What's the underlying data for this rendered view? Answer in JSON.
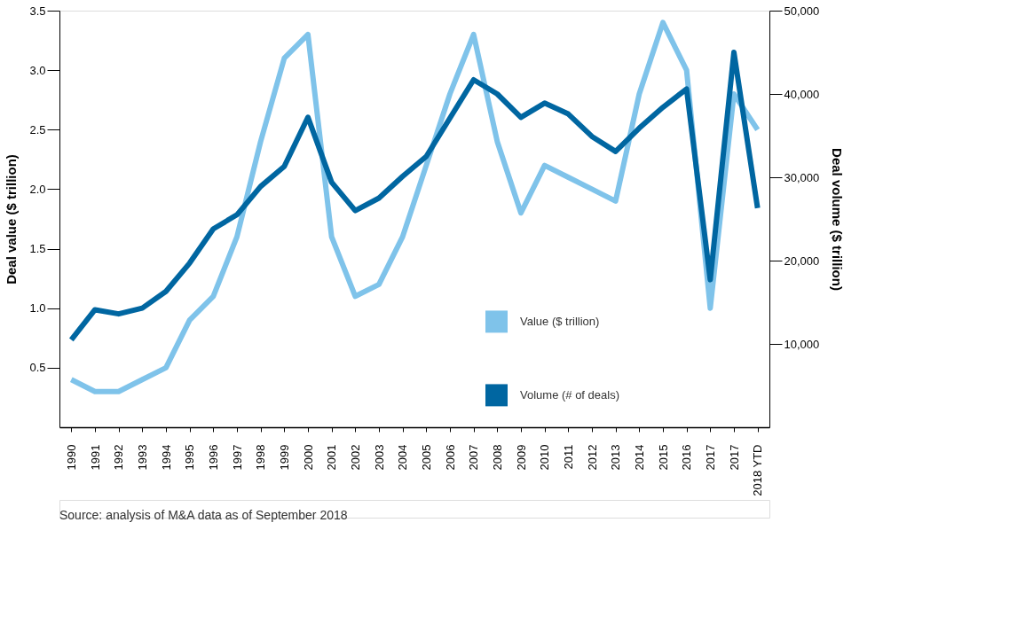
{
  "chart_data": {
    "type": "line",
    "xlabel": null,
    "ylabel": "Deal value ($ trillion)",
    "y2label": "Deal volume ($ trillion)",
    "categories": [
      "1990",
      "1991",
      "1992",
      "1993",
      "1994",
      "1995",
      "1996",
      "1997",
      "1998",
      "1999",
      "2000",
      "2001",
      "2002",
      "2003",
      "2004",
      "2005",
      "2006",
      "2007",
      "2008",
      "2009",
      "2010",
      "2011",
      "2012",
      "2013",
      "2014",
      "2015",
      "2016",
      "2017",
      "2017",
      "2018 YTD"
    ],
    "series": [
      {
        "name": "Value ($ trillion)",
        "color": "#7fc3ea",
        "values": [
          0.4,
          0.3,
          0.3,
          0.4,
          0.5,
          0.9,
          1.1,
          1.6,
          2.4,
          3.1,
          3.3,
          1.6,
          1.1,
          1.2,
          1.6,
          2.2,
          2.8,
          3.3,
          2.4,
          1.8,
          2.2,
          2.1,
          2.0,
          1.9,
          2.8,
          3.4,
          3.0,
          1.0,
          2.8,
          2.5
        ]
      },
      {
        "name": "Volume (# of deals)",
        "color": "#0066a1",
        "axis": "y2",
        "values": [
          10500,
          14100,
          13600,
          14300,
          16300,
          19700,
          23800,
          25500,
          28900,
          31300,
          37200,
          29400,
          26000,
          27500,
          30100,
          32500,
          37100,
          41700,
          40000,
          37200,
          38900,
          37600,
          34900,
          33100,
          35900,
          38400,
          40600,
          17700,
          45000,
          26300
        ]
      }
    ],
    "ylim": [
      0,
      3.5
    ],
    "yticks": [
      0.5,
      {
        "value": 1,
        "label": "1.0"
      },
      1.5,
      {
        "value": 2,
        "label": "2.0"
      },
      2.5,
      {
        "value": 3,
        "label": "3.0"
      },
      3.5
    ],
    "y2lim": [
      0,
      50000
    ],
    "y2ticks": [
      {
        "value": 10000,
        "label": "10,000"
      },
      {
        "value": 20000,
        "label": "20,000"
      },
      {
        "value": 30000,
        "label": "30,000"
      },
      {
        "value": 40000,
        "label": "40,000"
      },
      {
        "value": 50000,
        "label": "50,000"
      }
    ],
    "grid": false,
    "legend": "bottom right",
    "marker": "none",
    "line_style": "solid",
    "annotations": [
      "Source: analysis of M&A data as of September 2018"
    ]
  }
}
